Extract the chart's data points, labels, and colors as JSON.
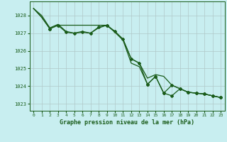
{
  "background_color": "#c8eef0",
  "plot_bg_color": "#c8eef0",
  "grid_color": "#b0c8c8",
  "line_color": "#1a5c1a",
  "marker_color": "#1a5c1a",
  "xlabel": "Graphe pression niveau de la mer (hPa)",
  "ylim": [
    1022.6,
    1028.8
  ],
  "xlim": [
    -0.5,
    23.5
  ],
  "yticks": [
    1023,
    1024,
    1025,
    1026,
    1027,
    1028
  ],
  "xticks": [
    0,
    1,
    2,
    3,
    4,
    5,
    6,
    7,
    8,
    9,
    10,
    11,
    12,
    13,
    14,
    15,
    16,
    17,
    18,
    19,
    20,
    21,
    22,
    23
  ],
  "line1_x": [
    0,
    1,
    2,
    3,
    4,
    5,
    6,
    7,
    8,
    9,
    10,
    11,
    12,
    13,
    14,
    15,
    16,
    17,
    18,
    19,
    20,
    21,
    22,
    23
  ],
  "line1_y": [
    1028.4,
    1028.0,
    1027.3,
    1027.5,
    1027.1,
    1027.0,
    1027.1,
    1027.0,
    1027.3,
    1027.45,
    1027.1,
    1026.65,
    1025.55,
    1025.3,
    1024.45,
    1024.65,
    1024.55,
    1024.05,
    1023.85,
    1023.65,
    1023.6,
    1023.55,
    1023.45,
    1023.35
  ],
  "line2_x": [
    0,
    1,
    2,
    3,
    4,
    5,
    6,
    7,
    8,
    9,
    10,
    11,
    12,
    13,
    14,
    15,
    16,
    17,
    18,
    19,
    20,
    21,
    22,
    23
  ],
  "line2_y": [
    1028.4,
    1027.9,
    1027.25,
    1027.45,
    1027.05,
    1027.0,
    1027.05,
    1027.0,
    1027.35,
    1027.45,
    1027.05,
    1026.6,
    1025.3,
    1025.1,
    1024.1,
    1024.55,
    1023.6,
    1023.45,
    1023.85,
    1023.65,
    1023.6,
    1023.55,
    1023.45,
    1023.35
  ],
  "line3_x": [
    0,
    1,
    2,
    3,
    9,
    10,
    11,
    12,
    13,
    14,
    15,
    16,
    17,
    18,
    19,
    20,
    21,
    22,
    23
  ],
  "line3_y": [
    1028.4,
    1027.9,
    1027.25,
    1027.45,
    1027.45,
    1027.1,
    1026.65,
    1025.55,
    1025.3,
    1024.1,
    1024.55,
    1023.6,
    1024.05,
    1023.85,
    1023.65,
    1023.6,
    1023.55,
    1023.45,
    1023.35
  ],
  "markers2_x": [
    2,
    3,
    4,
    5,
    6,
    7,
    8,
    9,
    14,
    15,
    16,
    17,
    18,
    19,
    20,
    21,
    22,
    23
  ],
  "markers2_y": [
    1027.25,
    1027.45,
    1027.05,
    1027.0,
    1027.05,
    1027.0,
    1027.35,
    1027.45,
    1024.1,
    1024.55,
    1023.6,
    1023.45,
    1023.85,
    1023.65,
    1023.6,
    1023.55,
    1023.45,
    1023.35
  ],
  "markers3_x": [
    2,
    3,
    9,
    10,
    11,
    12,
    13,
    14,
    15,
    16,
    17,
    18,
    19,
    20,
    21,
    22,
    23
  ],
  "markers3_y": [
    1027.25,
    1027.45,
    1027.45,
    1027.1,
    1026.65,
    1025.55,
    1025.3,
    1024.1,
    1024.55,
    1023.6,
    1024.05,
    1023.85,
    1023.65,
    1023.6,
    1023.55,
    1023.45,
    1023.35
  ]
}
